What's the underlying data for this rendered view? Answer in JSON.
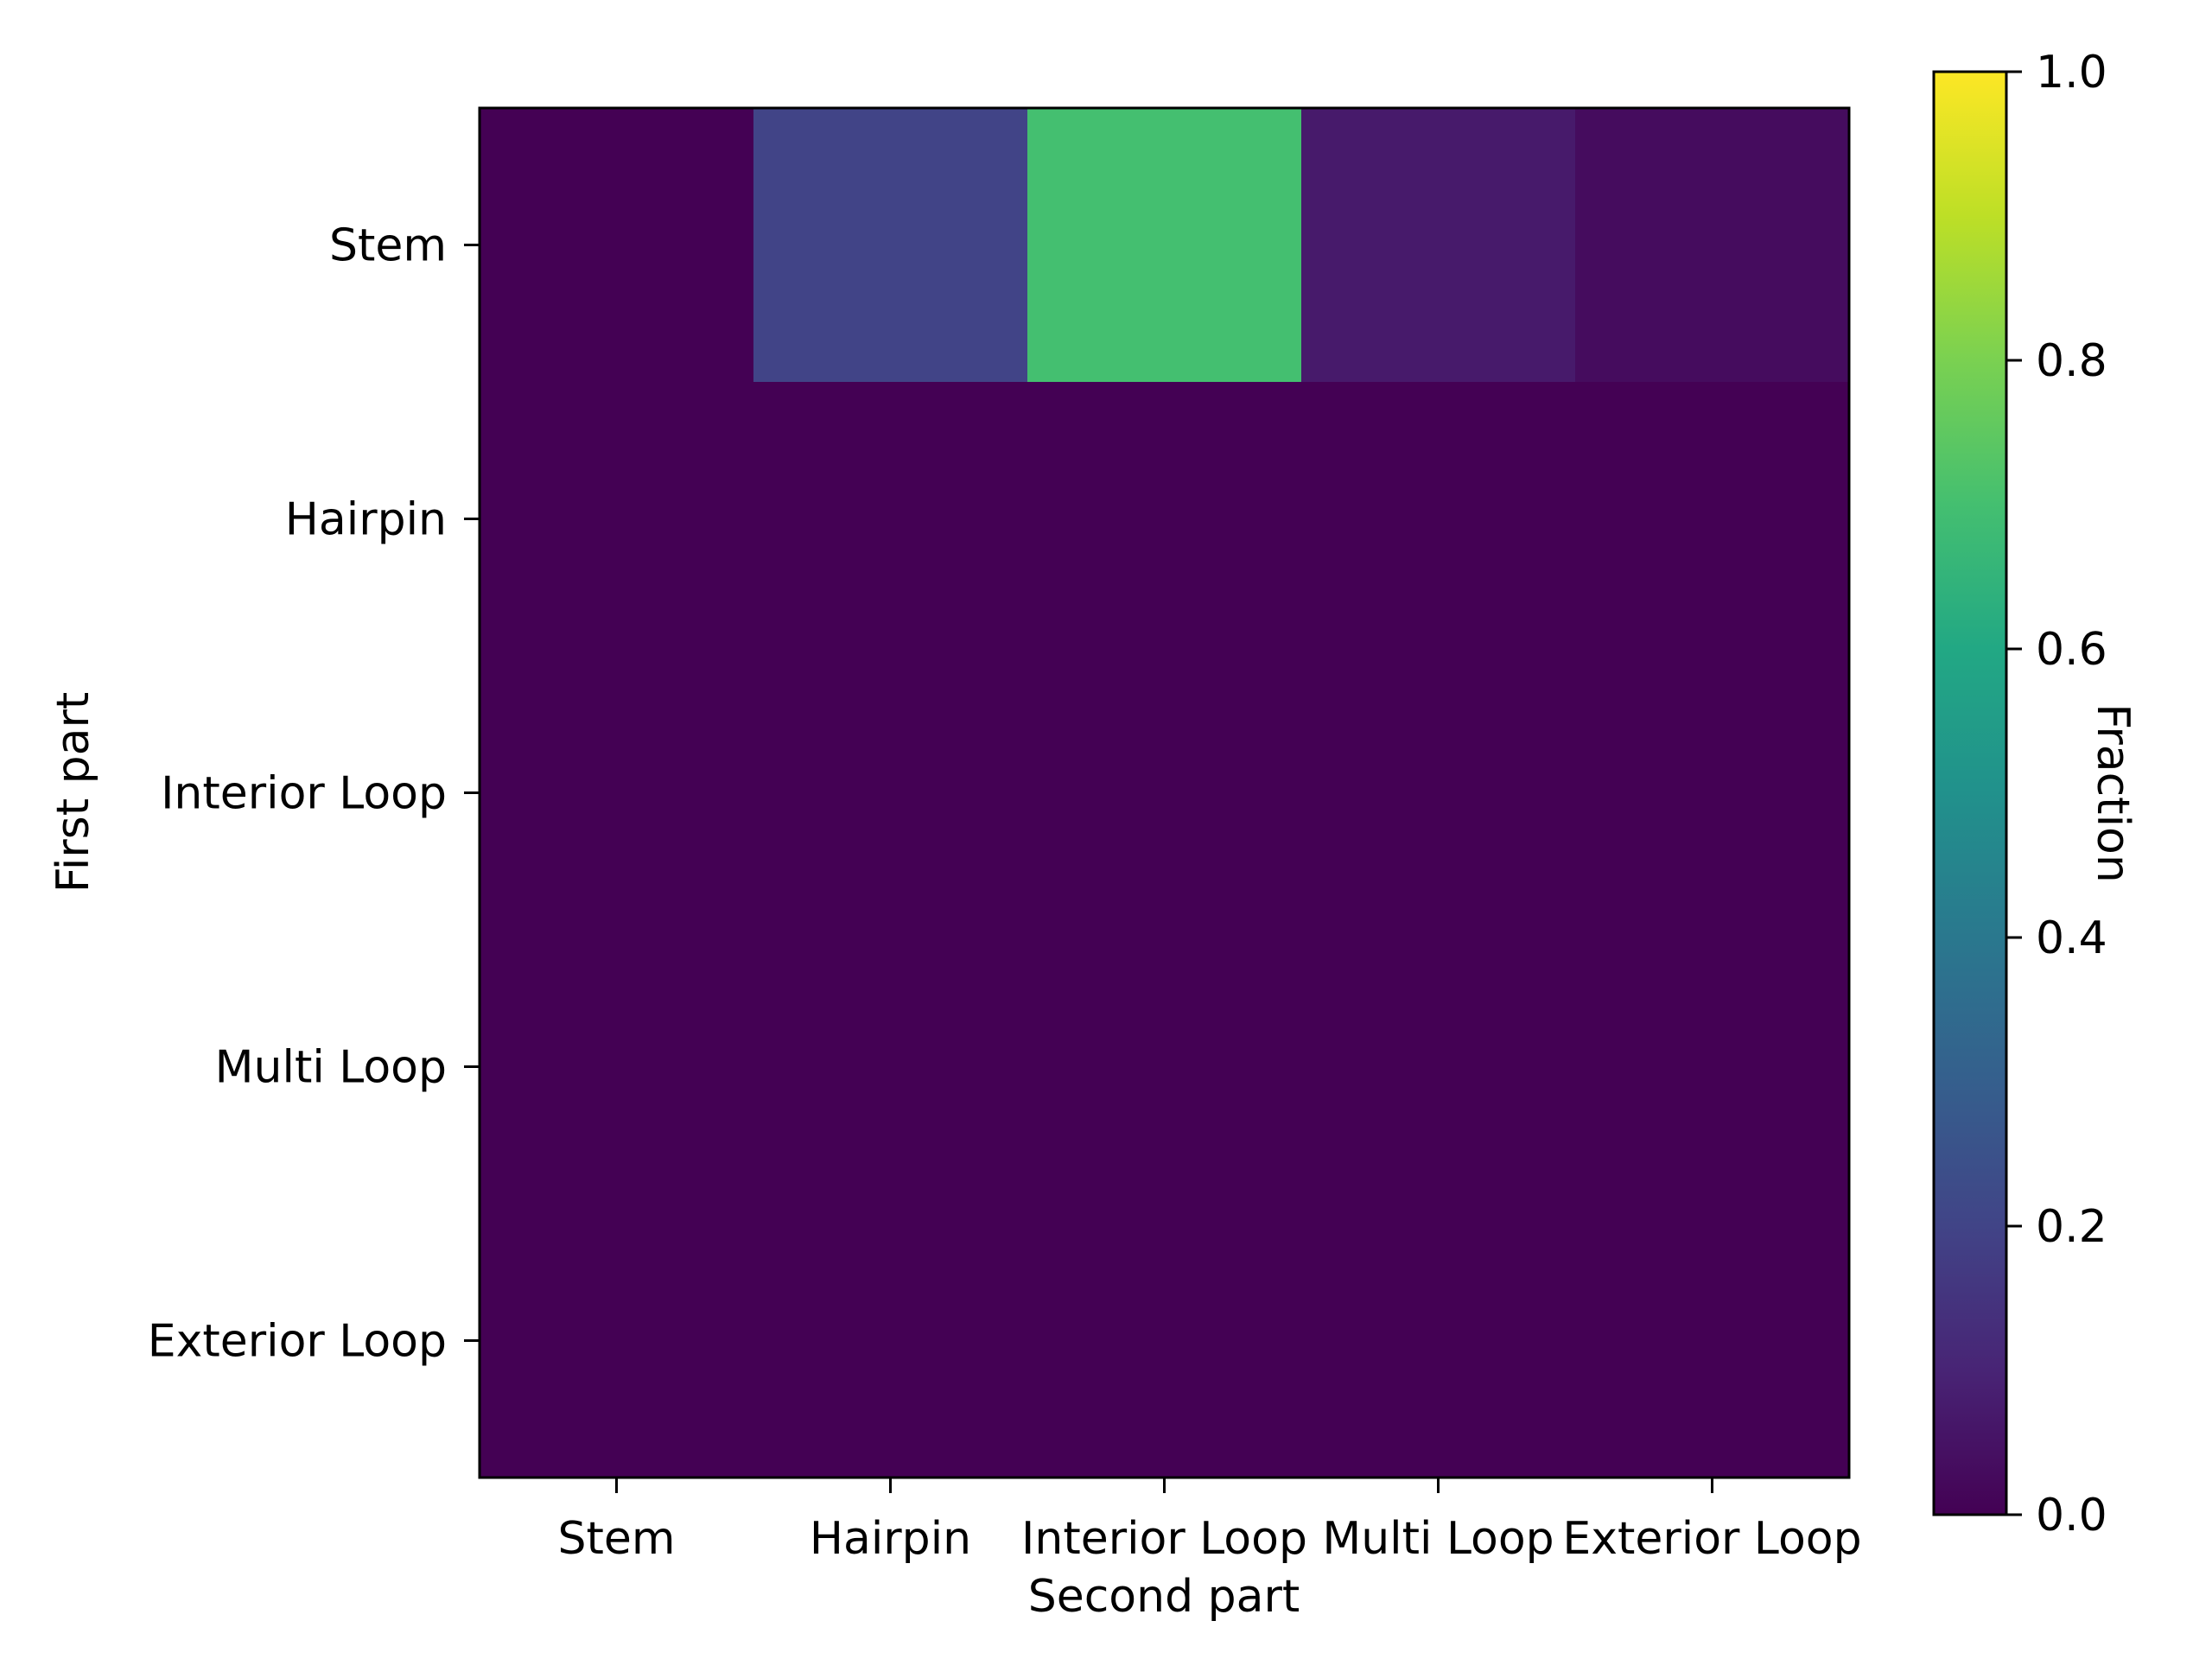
{
  "chart_data": {
    "type": "heatmap",
    "x_categories": [
      "Stem",
      "Hairpin",
      "Interior Loop",
      "Multi Loop",
      "Exterior Loop"
    ],
    "y_categories": [
      "Stem",
      "Hairpin",
      "Interior Loop",
      "Multi Loop",
      "Exterior Loop"
    ],
    "values": [
      [
        0.0,
        0.2,
        0.7,
        0.07,
        0.03
      ],
      [
        0.0,
        0.0,
        0.0,
        0.0,
        0.0
      ],
      [
        0.0,
        0.0,
        0.0,
        0.0,
        0.0
      ],
      [
        0.0,
        0.0,
        0.0,
        0.0,
        0.0
      ],
      [
        0.0,
        0.0,
        0.0,
        0.0,
        0.0
      ]
    ],
    "xlabel": "Second part",
    "ylabel": "First part",
    "colorbar": {
      "label": "Fraction",
      "range": [
        0.0,
        1.0
      ],
      "ticks": [
        0.0,
        0.2,
        0.4,
        0.6,
        0.8,
        1.0
      ],
      "tick_labels": [
        "0.0",
        "0.2",
        "0.4",
        "0.6",
        "0.8",
        "1.0"
      ],
      "colormap": "viridis"
    }
  }
}
